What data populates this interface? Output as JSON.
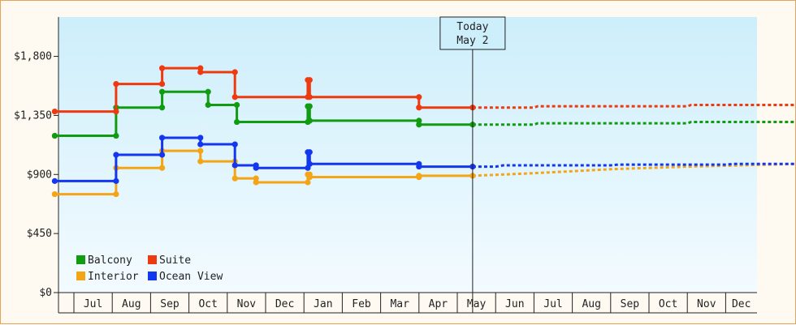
{
  "chart_data": {
    "type": "line",
    "title": "",
    "xlabel": "",
    "ylabel": "",
    "ylim": [
      0,
      2100
    ],
    "y_ticks": [
      {
        "value": 0,
        "label": "$0"
      },
      {
        "value": 450,
        "label": "$450"
      },
      {
        "value": 900,
        "label": "$900"
      },
      {
        "value": 1350,
        "label": "$1,350"
      },
      {
        "value": 1800,
        "label": "$1,800"
      }
    ],
    "x_ticks": [
      "Jul",
      "Aug",
      "Sep",
      "Oct",
      "Nov",
      "Dec",
      "Jan",
      "Feb",
      "Mar",
      "Apr",
      "May",
      "Jun",
      "Jul",
      "Aug",
      "Sep",
      "Oct",
      "Nov",
      "Dec"
    ],
    "today_marker": {
      "line1": "Today",
      "line2": "May 2",
      "x": 10.4
    },
    "grid": false,
    "background": {
      "top": "#cdeefb",
      "bottom": "#f3fbff"
    },
    "legend": {
      "position": "bottom-left"
    },
    "series": [
      {
        "name": "Balcony",
        "color": "#119b11",
        "historical": [
          [
            -0.5,
            1195
          ],
          [
            1.1,
            1195
          ],
          [
            1.1,
            1410
          ],
          [
            2.3,
            1410
          ],
          [
            2.3,
            1530
          ],
          [
            3.5,
            1530
          ],
          [
            3.5,
            1430
          ],
          [
            4.25,
            1430
          ],
          [
            4.25,
            1300
          ],
          [
            6.1,
            1300
          ],
          [
            6.1,
            1420
          ],
          [
            6.15,
            1420
          ],
          [
            6.15,
            1310
          ],
          [
            9.0,
            1310
          ],
          [
            9.0,
            1280
          ],
          [
            10.4,
            1280
          ]
        ],
        "projected": [
          [
            10.4,
            1280
          ],
          [
            12.0,
            1280
          ],
          [
            12.1,
            1290
          ],
          [
            16.0,
            1290
          ],
          [
            16.1,
            1300
          ],
          [
            18.8,
            1300
          ]
        ]
      },
      {
        "name": "Suite",
        "color": "#ee3a0e",
        "historical": [
          [
            -0.5,
            1380
          ],
          [
            1.1,
            1380
          ],
          [
            1.1,
            1590
          ],
          [
            2.3,
            1590
          ],
          [
            2.3,
            1710
          ],
          [
            3.3,
            1710
          ],
          [
            3.3,
            1680
          ],
          [
            4.2,
            1680
          ],
          [
            4.2,
            1490
          ],
          [
            6.1,
            1490
          ],
          [
            6.1,
            1620
          ],
          [
            6.15,
            1620
          ],
          [
            6.15,
            1490
          ],
          [
            9.0,
            1490
          ],
          [
            9.0,
            1410
          ],
          [
            10.4,
            1410
          ]
        ],
        "projected": [
          [
            10.4,
            1410
          ],
          [
            12.0,
            1410
          ],
          [
            12.1,
            1420
          ],
          [
            16.0,
            1420
          ],
          [
            16.1,
            1430
          ],
          [
            18.8,
            1430
          ]
        ]
      },
      {
        "name": "Interior",
        "color": "#f4a516",
        "historical": [
          [
            -0.5,
            750
          ],
          [
            1.1,
            750
          ],
          [
            1.1,
            950
          ],
          [
            2.3,
            950
          ],
          [
            2.3,
            1080
          ],
          [
            3.3,
            1080
          ],
          [
            3.3,
            1000
          ],
          [
            4.2,
            1000
          ],
          [
            4.2,
            870
          ],
          [
            4.75,
            870
          ],
          [
            4.75,
            840
          ],
          [
            6.1,
            840
          ],
          [
            6.1,
            900
          ],
          [
            6.15,
            900
          ],
          [
            6.15,
            880
          ],
          [
            9.0,
            880
          ],
          [
            9.0,
            890
          ],
          [
            10.4,
            890
          ]
        ],
        "projected": [
          [
            10.4,
            890
          ],
          [
            12.0,
            910
          ],
          [
            14.0,
            940
          ],
          [
            16.0,
            960
          ],
          [
            18.8,
            980
          ]
        ]
      },
      {
        "name": "Ocean View",
        "color": "#1336ef",
        "historical": [
          [
            -0.5,
            850
          ],
          [
            1.1,
            850
          ],
          [
            1.1,
            1050
          ],
          [
            2.3,
            1050
          ],
          [
            2.3,
            1180
          ],
          [
            3.3,
            1180
          ],
          [
            3.3,
            1130
          ],
          [
            4.2,
            1130
          ],
          [
            4.2,
            970
          ],
          [
            4.75,
            970
          ],
          [
            4.75,
            950
          ],
          [
            6.1,
            950
          ],
          [
            6.1,
            1070
          ],
          [
            6.15,
            1070
          ],
          [
            6.15,
            980
          ],
          [
            9.0,
            980
          ],
          [
            9.0,
            960
          ],
          [
            10.4,
            960
          ]
        ],
        "projected": [
          [
            10.4,
            960
          ],
          [
            11.0,
            960
          ],
          [
            11.2,
            970
          ],
          [
            14.0,
            970
          ],
          [
            14.2,
            975
          ],
          [
            17.0,
            975
          ],
          [
            17.2,
            980
          ],
          [
            18.8,
            980
          ]
        ]
      }
    ]
  }
}
